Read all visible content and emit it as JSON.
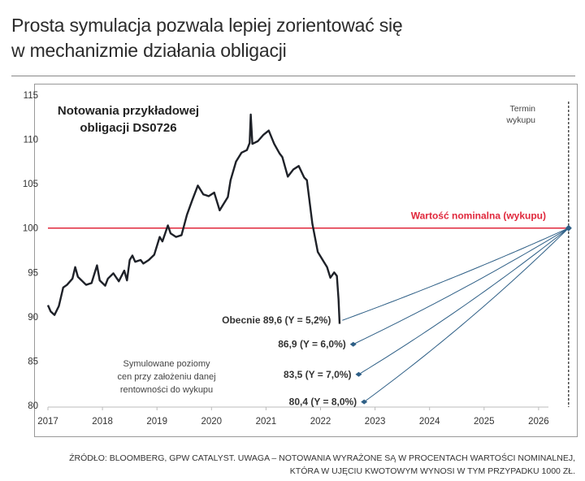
{
  "title_lines": [
    "Prosta symulacja pozwala lepiej zorientować się",
    "w mechanizmie działania obligacji"
  ],
  "footnote_lines": [
    "ŹRÓDŁO: BLOOMBERG, GPW CATALYST. UWAGA – NOTOWANIA WYRAŻONE SĄ W PROCENTACH WARTOŚCI NOMINALNEJ,",
    "KTÓRA W UJĘCIU KWOTOWYM WYNOSI W TYM PRZYPADKU 1000 ZŁ."
  ],
  "chart_data": {
    "type": "line",
    "title_lines": [
      "Notowania przykładowej",
      "obligacji DS0726"
    ],
    "ylim": [
      80,
      115
    ],
    "yticks": [
      "80",
      "85",
      "90",
      "95",
      "100",
      "105",
      "110",
      "115"
    ],
    "xlim": [
      2017,
      2026.55
    ],
    "xticks": [
      "2017",
      "2018",
      "2019",
      "2020",
      "2021",
      "2022",
      "2023",
      "2024",
      "2025",
      "2026"
    ],
    "series": [
      {
        "name": "DS0726",
        "x": [
          2017.0,
          2017.05,
          2017.12,
          2017.2,
          2017.28,
          2017.35,
          2017.45,
          2017.5,
          2017.55,
          2017.6,
          2017.7,
          2017.8,
          2017.9,
          2017.95,
          2018.05,
          2018.1,
          2018.2,
          2018.3,
          2018.4,
          2018.45,
          2018.5,
          2018.55,
          2018.6,
          2018.7,
          2018.75,
          2018.85,
          2018.95,
          2019.05,
          2019.1,
          2019.2,
          2019.25,
          2019.35,
          2019.45,
          2019.55,
          2019.65,
          2019.75,
          2019.85,
          2019.95,
          2020.05,
          2020.15,
          2020.2,
          2020.3,
          2020.35,
          2020.45,
          2020.55,
          2020.65,
          2020.7,
          2020.72,
          2020.75,
          2020.85,
          2020.95,
          2021.05,
          2021.15,
          2021.25,
          2021.3,
          2021.4,
          2021.5,
          2021.6,
          2021.7,
          2021.75,
          2021.85,
          2021.95,
          2022.05,
          2022.12,
          2022.18,
          2022.25,
          2022.3,
          2022.33,
          2022.35
        ],
        "values": [
          91.3,
          90.6,
          90.2,
          91.2,
          93.3,
          93.6,
          94.3,
          95.6,
          94.5,
          94.2,
          93.6,
          93.8,
          95.8,
          94.1,
          93.5,
          94.3,
          94.9,
          94.0,
          95.2,
          94.1,
          96.4,
          96.9,
          96.2,
          96.4,
          96.0,
          96.4,
          97.0,
          99.0,
          98.5,
          100.3,
          99.4,
          99.0,
          99.2,
          101.5,
          103.2,
          104.8,
          103.8,
          103.6,
          104.0,
          102.0,
          102.5,
          103.5,
          105.4,
          107.5,
          108.5,
          108.8,
          109.6,
          112.8,
          109.5,
          109.8,
          110.5,
          111.0,
          109.5,
          108.4,
          108.0,
          105.8,
          106.6,
          107.0,
          105.7,
          105.4,
          100.5,
          97.3,
          96.3,
          95.6,
          94.4,
          95.0,
          94.6,
          92.0,
          89.2
        ]
      }
    ],
    "simulations": [
      {
        "label": "Obecnie 89,6 (Y = 5,2%)",
        "price": 89.6,
        "yield": 5.2,
        "x": 2022.4
      },
      {
        "label": "86,9 (Y = 6,0%)",
        "price": 86.9,
        "yield": 6.0,
        "x": 2022.6
      },
      {
        "label": "83,5 (Y = 7,0%)",
        "price": 83.5,
        "yield": 7.0,
        "x": 2022.7
      },
      {
        "label": "80,4 (Y = 8,0%)",
        "price": 80.4,
        "yield": 8.0,
        "x": 2022.8
      }
    ],
    "nominal": {
      "value": 100,
      "label": "Wartość nominalna  (wykupu)"
    },
    "maturity": {
      "x": 2026.55,
      "label_lines": [
        "Termin",
        "wykupu"
      ]
    },
    "annotation_lines": [
      "Symulowane poziomy",
      "cen przy założeniu danej",
      "rentowności do wykupu"
    ],
    "colors": {
      "price": "#1e2128",
      "nominal": "#e0283c",
      "sim": "#2e5f86"
    }
  }
}
